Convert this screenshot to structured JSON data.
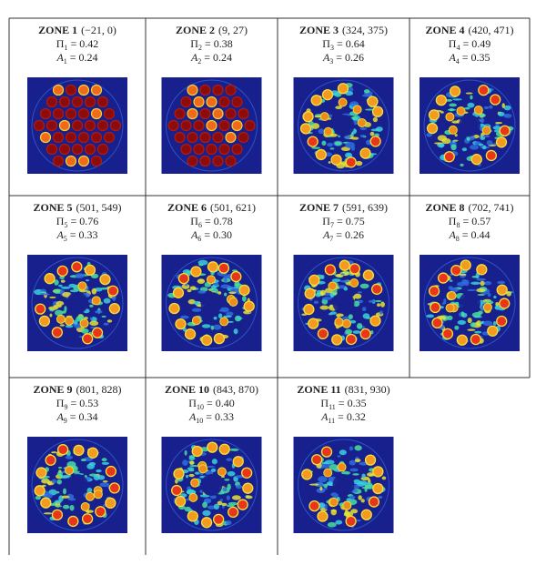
{
  "zones": [
    {
      "title": "ZONE 1",
      "range": "(−21, 0)",
      "pi": {
        "symbol": "Π",
        "sub": "1",
        "text": " = 0.42"
      },
      "a": {
        "symbol": "A",
        "sub": "1",
        "text": " = 0.24"
      }
    },
    {
      "title": "ZONE 2",
      "range": "(9, 27)",
      "pi": {
        "symbol": "Π",
        "sub": "2",
        "text": " = 0.38"
      },
      "a": {
        "symbol": "A",
        "sub": "2",
        "text": " = 0.24"
      }
    },
    {
      "title": "ZONE 3",
      "range": "(324, 375)",
      "pi": {
        "symbol": "Π",
        "sub": "3",
        "text": " = 0.64"
      },
      "a": {
        "symbol": "A",
        "sub": "3",
        "text": " = 0.26"
      }
    },
    {
      "title": "ZONE 4",
      "range": "(420, 471)",
      "pi": {
        "symbol": "Π",
        "sub": "4",
        "text": " = 0.49"
      },
      "a": {
        "symbol": "A",
        "sub": "4",
        "text": " = 0.35"
      }
    },
    {
      "title": "ZONE 5",
      "range": "(501, 549)",
      "pi": {
        "symbol": "Π",
        "sub": "5",
        "text": " = 0.76"
      },
      "a": {
        "symbol": "A",
        "sub": "5",
        "text": " = 0.33"
      }
    },
    {
      "title": "ZONE 6",
      "range": "(501, 621)",
      "pi": {
        "symbol": "Π",
        "sub": "6",
        "text": " = 0.78"
      },
      "a": {
        "symbol": "A",
        "sub": "6",
        "text": " = 0.30"
      }
    },
    {
      "title": "ZONE 7",
      "range": "(591, 639)",
      "pi": {
        "symbol": "Π",
        "sub": "7",
        "text": " = 0.75"
      },
      "a": {
        "symbol": "A",
        "sub": "7",
        "text": " = 0.26"
      }
    },
    {
      "title": "ZONE 8",
      "range": "(702, 741)",
      "pi": {
        "symbol": "Π",
        "sub": "8",
        "text": " = 0.57"
      },
      "a": {
        "symbol": "A",
        "sub": "8",
        "text": " = 0.44"
      }
    },
    {
      "title": "ZONE 9",
      "range": "(801, 828)",
      "pi": {
        "symbol": "Π",
        "sub": "9",
        "text": " = 0.53"
      },
      "a": {
        "symbol": "A",
        "sub": "9",
        "text": " = 0.34"
      }
    },
    {
      "title": "ZONE 10",
      "range": "(843, 870)",
      "pi": {
        "symbol": "Π",
        "sub": "10",
        "text": " = 0.40"
      },
      "a": {
        "symbol": "A",
        "sub": "10",
        "text": " = 0.33"
      }
    },
    {
      "title": "ZONE 11",
      "range": "(831, 930)",
      "pi": {
        "symbol": "Π",
        "sub": "11",
        "text": " = 0.35"
      },
      "a": {
        "symbol": "A",
        "sub": "11",
        "text": " = 0.32"
      }
    }
  ]
}
